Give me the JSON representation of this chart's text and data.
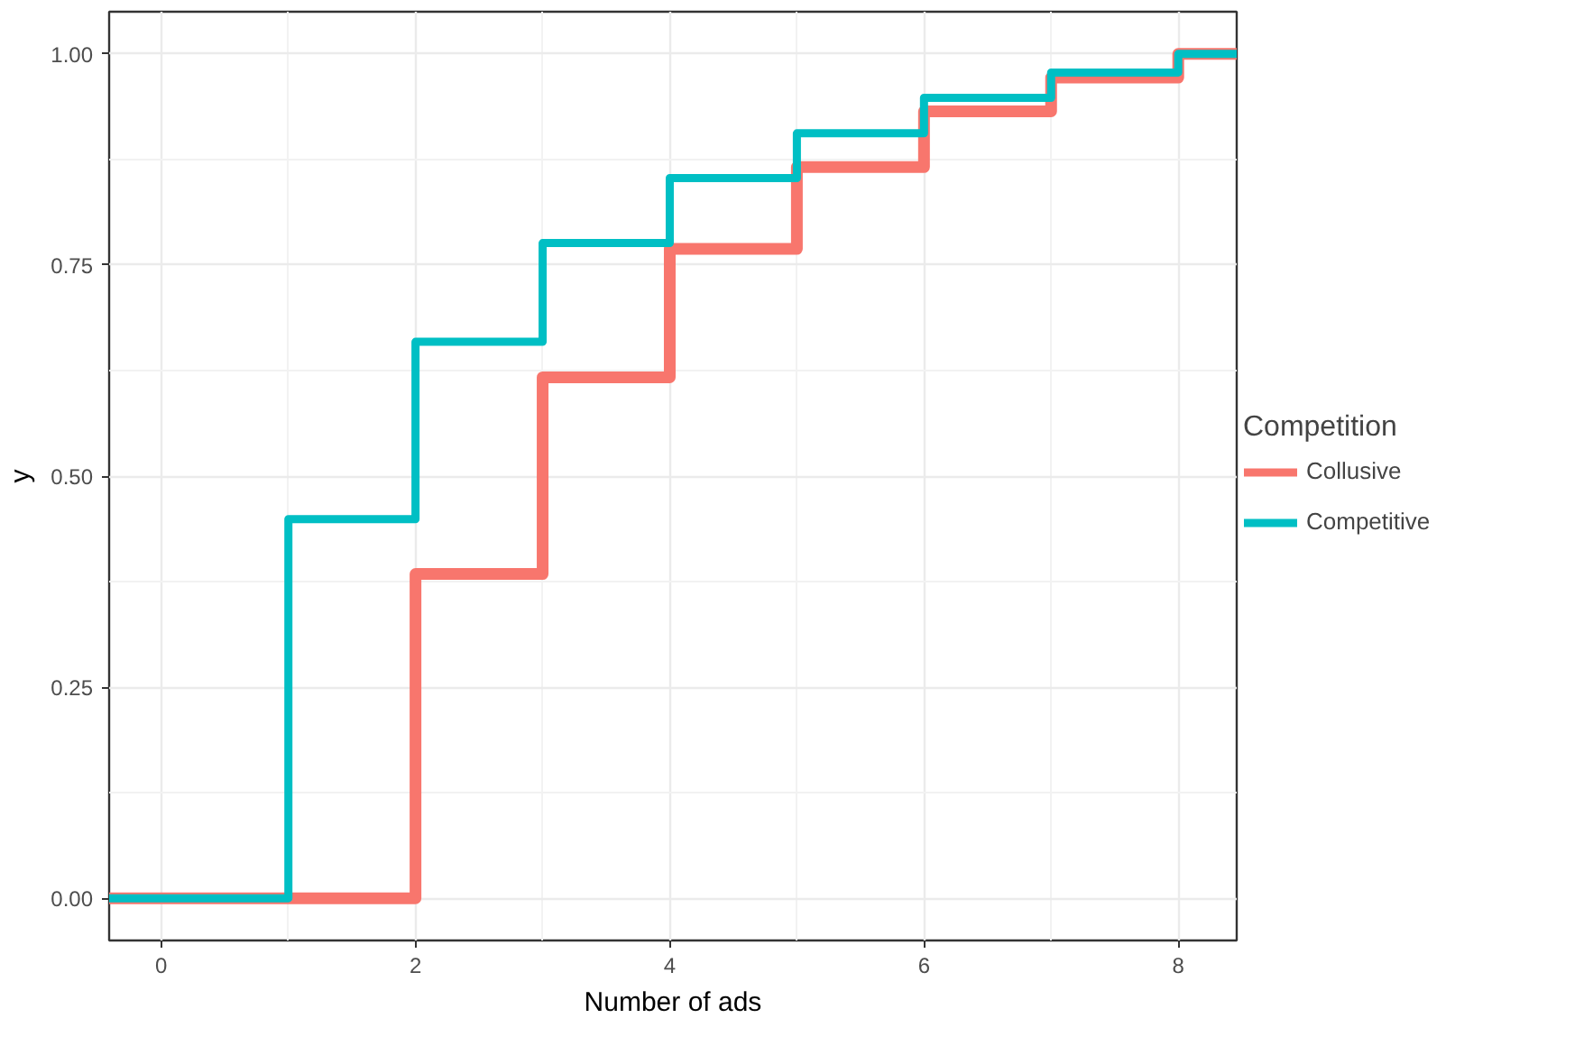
{
  "chart_data": {
    "type": "step",
    "xlabel": "Number of ads",
    "ylabel": "y",
    "legend_title": "Competition",
    "xlim": [
      -0.41,
      8.46
    ],
    "ylim": [
      -0.05,
      1.05
    ],
    "xticks": [
      0,
      2,
      4,
      6,
      8
    ],
    "yticks": [
      {
        "value": 0,
        "label": "0.00"
      },
      {
        "value": 0.25,
        "label": "0.25"
      },
      {
        "value": 0.5,
        "label": "0.50"
      },
      {
        "value": 0.75,
        "label": "0.75"
      },
      {
        "value": 1,
        "label": "1.00"
      }
    ],
    "grid": true,
    "legend": "right",
    "series": [
      {
        "name": "Collusive",
        "color": "#f8766d",
        "x": [
          -0.41,
          2,
          3,
          4,
          5,
          6,
          7,
          8,
          8.46
        ],
        "values": [
          0,
          0.384,
          0.617,
          0.769,
          0.866,
          0.932,
          0.972,
          1.0,
          1.0
        ]
      },
      {
        "name": "Competitive",
        "color": "#00bfc4",
        "x": [
          -0.41,
          1,
          2,
          3,
          4,
          5,
          6,
          7,
          8,
          8.46
        ],
        "values": [
          0,
          0.449,
          0.659,
          0.776,
          0.853,
          0.906,
          0.948,
          0.978,
          1.0,
          1.0
        ]
      }
    ]
  }
}
